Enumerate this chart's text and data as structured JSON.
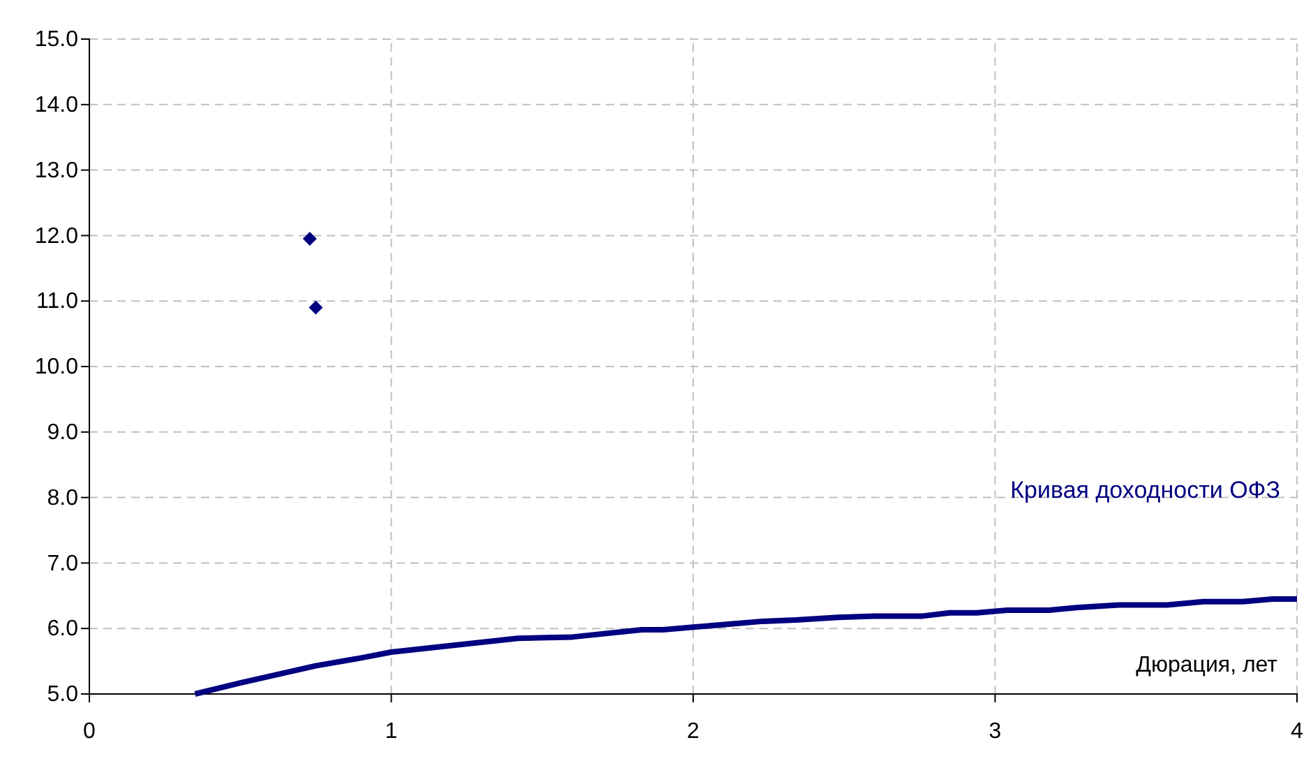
{
  "chart_data": {
    "type": "line",
    "xlabel": "Дюрация, лет",
    "xlim": [
      0,
      4
    ],
    "xticks": [
      0,
      1,
      2,
      3,
      4
    ],
    "ylim": [
      5,
      15
    ],
    "yticks": [
      {
        "value": 5,
        "label": "5.0"
      },
      {
        "value": 6,
        "label": "6.0"
      },
      {
        "value": 7,
        "label": "7.0"
      },
      {
        "value": 8,
        "label": "8.0"
      },
      {
        "value": 9,
        "label": "9.0"
      },
      {
        "value": 10,
        "label": "10.0"
      },
      {
        "value": 11,
        "label": "11.0"
      },
      {
        "value": 12,
        "label": "12.0"
      },
      {
        "value": 13,
        "label": "13.0"
      },
      {
        "value": 14,
        "label": "14.0"
      },
      {
        "value": 15,
        "label": "15.0"
      }
    ],
    "grid": true,
    "series": [
      {
        "name": "Кривая доходности ОФЗ",
        "color": "#000080",
        "x": [
          0.35,
          0.5,
          0.75,
          0.9,
          1.0,
          1.42,
          1.6,
          1.83,
          1.9,
          2.0,
          2.23,
          2.34,
          2.48,
          2.6,
          2.76,
          2.85,
          2.94,
          3.04,
          3.18,
          3.27,
          3.41,
          3.57,
          3.69,
          3.82,
          3.92,
          4.0
        ],
        "values": [
          5.0,
          5.17,
          5.43,
          5.55,
          5.64,
          5.85,
          5.87,
          5.98,
          5.98,
          6.02,
          6.11,
          6.13,
          6.17,
          6.19,
          6.19,
          6.24,
          6.24,
          6.28,
          6.28,
          6.32,
          6.36,
          6.36,
          6.41,
          6.41,
          6.45,
          6.45
        ]
      },
      {
        "type": "scatter",
        "marker": "diamond",
        "color": "#000080",
        "x": [
          0.73,
          0.75
        ],
        "values": [
          11.95,
          10.9
        ]
      }
    ]
  }
}
